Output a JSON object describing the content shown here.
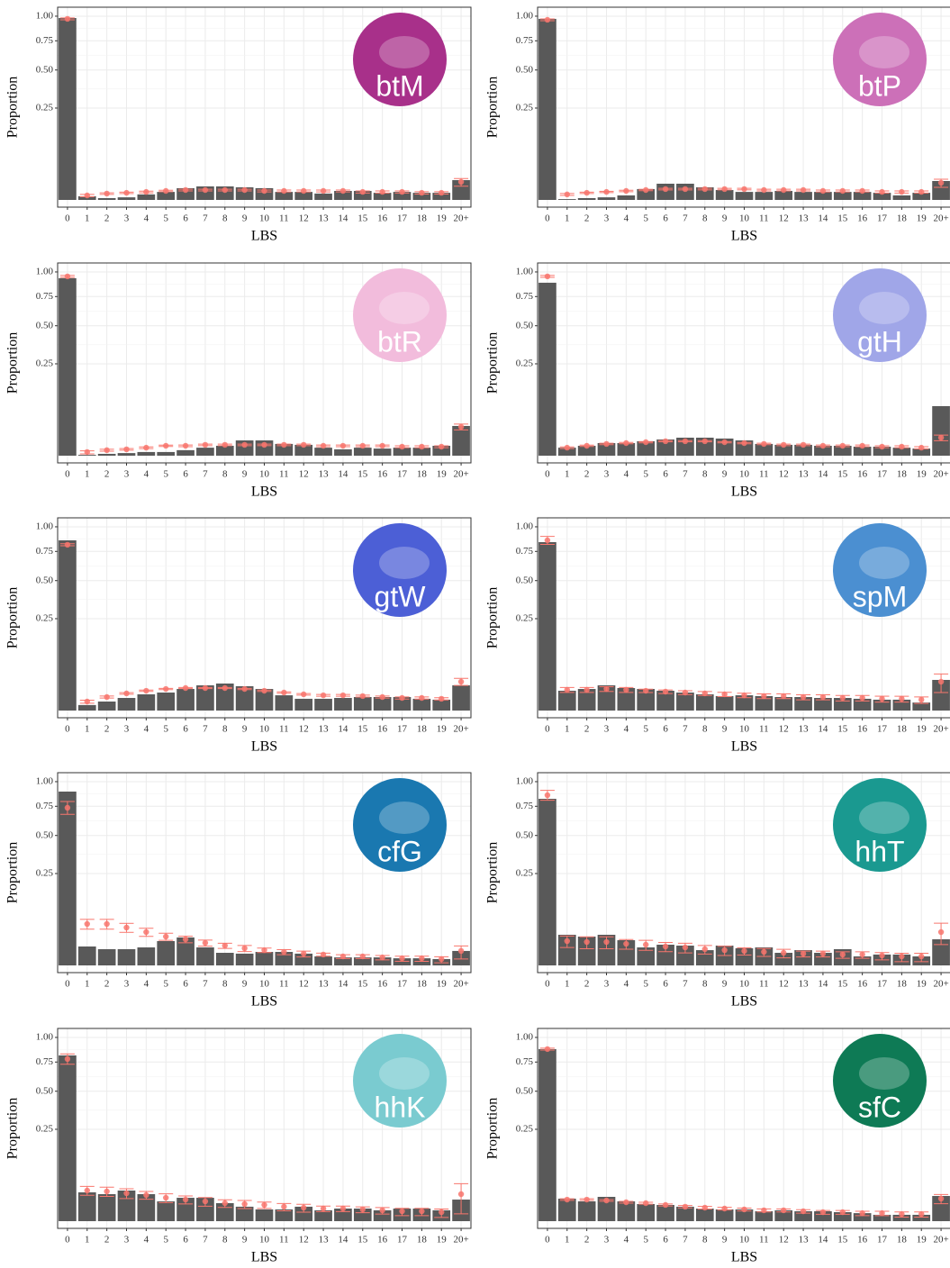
{
  "chart_data": [
    {
      "type": "bar",
      "label": "btM",
      "circle_color": "#a8308a",
      "xlabel": "LBS",
      "ylabel": "Proportion",
      "scale": "sqrt",
      "grid": true,
      "bar_color": "#595959",
      "point_color": "#f8766d",
      "categories": [
        "0",
        "1",
        "2",
        "3",
        "4",
        "5",
        "6",
        "7",
        "8",
        "9",
        "10",
        "11",
        "12",
        "13",
        "14",
        "15",
        "16",
        "17",
        "18",
        "19",
        "20+"
      ],
      "values": [
        0.98,
        0.0004,
        0.0001,
        0.0002,
        0.0009,
        0.0019,
        0.0041,
        0.0054,
        0.0054,
        0.0047,
        0.0041,
        0.0019,
        0.0019,
        0.0012,
        0.0024,
        0.0024,
        0.0015,
        0.0019,
        0.0015,
        0.0015,
        0.0116
      ],
      "point_values": [
        0.971,
        0.0006,
        0.0012,
        0.0015,
        0.0019,
        0.0024,
        0.0029,
        0.0029,
        0.0029,
        0.0029,
        0.0024,
        0.0024,
        0.0024,
        0.0024,
        0.0024,
        0.0019,
        0.0019,
        0.0019,
        0.0015,
        0.0015,
        0.0096
      ],
      "errors": [
        0.01,
        0.0003,
        0.0003,
        0.0003,
        0.0004,
        0.0004,
        0.0005,
        0.0005,
        0.0005,
        0.0005,
        0.0005,
        0.0005,
        0.0005,
        0.0005,
        0.0005,
        0.0005,
        0.0005,
        0.0005,
        0.0005,
        0.0005,
        0.004
      ],
      "ylim": [
        0,
        1.1
      ],
      "yticks": [
        0.25,
        {
          "value": 0.5,
          "label": "0.50"
        },
        0.75,
        {
          "value": 1,
          "label": "1.00"
        }
      ]
    },
    {
      "type": "bar",
      "label": "btP",
      "circle_color": "#cc70b8",
      "xlabel": "LBS",
      "ylabel": "Proportion",
      "scale": "sqrt",
      "grid": true,
      "bar_color": "#595959",
      "point_color": "#f8766d",
      "categories": [
        "0",
        "1",
        "2",
        "3",
        "4",
        "5",
        "6",
        "7",
        "8",
        "9",
        "10",
        "11",
        "12",
        "13",
        "14",
        "15",
        "16",
        "17",
        "18",
        "19",
        "20+"
      ],
      "values": [
        0.971,
        2e-05,
        0.0001,
        0.0002,
        0.0006,
        0.0035,
        0.0078,
        0.0078,
        0.0047,
        0.0029,
        0.0019,
        0.0019,
        0.0024,
        0.0019,
        0.0019,
        0.0019,
        0.0019,
        0.0015,
        0.0006,
        0.0015,
        0.0106
      ],
      "point_values": [
        0.961,
        0.0009,
        0.0015,
        0.0019,
        0.0024,
        0.0029,
        0.0035,
        0.0035,
        0.0035,
        0.0035,
        0.0035,
        0.0029,
        0.0029,
        0.0029,
        0.0024,
        0.0024,
        0.0024,
        0.0019,
        0.0019,
        0.0019,
        0.0087
      ],
      "errors": [
        0.01,
        0.0003,
        0.0003,
        0.0003,
        0.0004,
        0.0004,
        0.0005,
        0.0005,
        0.0005,
        0.0005,
        0.0005,
        0.0005,
        0.0005,
        0.0005,
        0.0005,
        0.0005,
        0.0005,
        0.0005,
        0.0005,
        0.0005,
        0.004
      ],
      "ylim": [
        0,
        1.1
      ],
      "yticks": [
        0.25,
        {
          "value": 0.5,
          "label": "0.50"
        },
        0.75,
        {
          "value": 1,
          "label": "1.00"
        }
      ]
    },
    {
      "type": "bar",
      "label": "btR",
      "circle_color": "#f2bcdc",
      "xlabel": "LBS",
      "ylabel": "Proportion",
      "scale": "sqrt",
      "grid": true,
      "bar_color": "#595959",
      "point_color": "#f8766d",
      "categories": [
        "0",
        "1",
        "2",
        "3",
        "4",
        "5",
        "6",
        "7",
        "8",
        "9",
        "10",
        "11",
        "12",
        "13",
        "14",
        "15",
        "16",
        "17",
        "18",
        "19",
        "20+"
      ],
      "values": [
        0.933,
        2e-05,
        0.0001,
        0.0002,
        0.0004,
        0.0004,
        0.0009,
        0.0019,
        0.0029,
        0.0069,
        0.0069,
        0.0041,
        0.0035,
        0.0019,
        0.0012,
        0.0019,
        0.0015,
        0.0019,
        0.0019,
        0.0029,
        0.0262
      ],
      "point_values": [
        0.952,
        0.0004,
        0.0009,
        0.0012,
        0.0019,
        0.0029,
        0.0029,
        0.0035,
        0.0035,
        0.0035,
        0.0035,
        0.0035,
        0.0035,
        0.0029,
        0.0029,
        0.0029,
        0.0029,
        0.0024,
        0.0024,
        0.0024,
        0.0246
      ],
      "errors": [
        0.01,
        0.0003,
        0.0003,
        0.0003,
        0.0004,
        0.0004,
        0.0005,
        0.0005,
        0.0005,
        0.0005,
        0.0005,
        0.0005,
        0.0005,
        0.0005,
        0.0005,
        0.0005,
        0.0005,
        0.0005,
        0.0005,
        0.0005,
        0.005
      ],
      "ylim": [
        0,
        1.1
      ],
      "yticks": [
        0.25,
        {
          "value": 0.5,
          "label": "0.50"
        },
        0.75,
        {
          "value": 1,
          "label": "1.00"
        }
      ]
    },
    {
      "type": "bar",
      "label": "gtH",
      "circle_color": "#a0a6e8",
      "xlabel": "LBS",
      "ylabel": "Proportion",
      "scale": "sqrt",
      "grid": true,
      "bar_color": "#595959",
      "point_color": "#f8766d",
      "categories": [
        "0",
        "1",
        "2",
        "3",
        "4",
        "5",
        "6",
        "7",
        "8",
        "9",
        "10",
        "11",
        "12",
        "13",
        "14",
        "15",
        "16",
        "17",
        "18",
        "19",
        "20+"
      ],
      "values": [
        0.886,
        0.0019,
        0.0029,
        0.0047,
        0.0047,
        0.0062,
        0.0078,
        0.0096,
        0.0096,
        0.0087,
        0.0069,
        0.0041,
        0.0035,
        0.0035,
        0.0029,
        0.0029,
        0.0024,
        0.0024,
        0.0019,
        0.0015,
        0.0727
      ],
      "point_values": [
        0.952,
        0.0019,
        0.0029,
        0.0041,
        0.0047,
        0.0054,
        0.0062,
        0.0062,
        0.0062,
        0.0054,
        0.0047,
        0.0041,
        0.0035,
        0.0035,
        0.0029,
        0.0029,
        0.0029,
        0.0024,
        0.0024,
        0.0019,
        0.0096
      ],
      "errors": [
        0.01,
        0.0004,
        0.0004,
        0.0005,
        0.0005,
        0.0005,
        0.0005,
        0.0005,
        0.0005,
        0.0005,
        0.0005,
        0.0005,
        0.0005,
        0.0005,
        0.0005,
        0.0005,
        0.0005,
        0.0005,
        0.0005,
        0.0005,
        0.003
      ],
      "ylim": [
        0,
        1.1
      ],
      "yticks": [
        0.25,
        {
          "value": 0.5,
          "label": "0.50"
        },
        0.75,
        {
          "value": 1,
          "label": "1.00"
        }
      ]
    },
    {
      "type": "bar",
      "label": "gtW",
      "circle_color": "#4c5fd6",
      "xlabel": "LBS",
      "ylabel": "Proportion",
      "scale": "sqrt",
      "grid": true,
      "bar_color": "#595959",
      "point_color": "#f8766d",
      "categories": [
        "0",
        "1",
        "2",
        "3",
        "4",
        "5",
        "6",
        "7",
        "8",
        "9",
        "10",
        "11",
        "12",
        "13",
        "14",
        "15",
        "16",
        "17",
        "18",
        "19",
        "20+"
      ],
      "values": [
        0.858,
        0.0009,
        0.0024,
        0.0047,
        0.0078,
        0.0096,
        0.0138,
        0.0188,
        0.0216,
        0.0175,
        0.0138,
        0.0069,
        0.0041,
        0.0041,
        0.0047,
        0.0054,
        0.0054,
        0.0054,
        0.0041,
        0.0035,
        0.0188
      ],
      "point_values": [
        0.814,
        0.0024,
        0.0054,
        0.0087,
        0.0116,
        0.0138,
        0.015,
        0.015,
        0.015,
        0.0138,
        0.0116,
        0.0096,
        0.0078,
        0.0069,
        0.0069,
        0.0062,
        0.0054,
        0.0047,
        0.0047,
        0.0041,
        0.0246
      ],
      "errors": [
        0.01,
        0.0008,
        0.0008,
        0.0008,
        0.0008,
        0.0008,
        0.0008,
        0.0008,
        0.0008,
        0.0008,
        0.0008,
        0.0008,
        0.0008,
        0.0008,
        0.0008,
        0.0008,
        0.0008,
        0.0008,
        0.0008,
        0.0008,
        0.006
      ],
      "ylim": [
        0,
        1.1
      ],
      "yticks": [
        0.25,
        {
          "value": 0.5,
          "label": "0.50"
        },
        0.75,
        {
          "value": 1,
          "label": "1.00"
        }
      ]
    },
    {
      "type": "bar",
      "label": "spM",
      "circle_color": "#4b8fd1",
      "xlabel": "LBS",
      "ylabel": "Proportion",
      "scale": "sqrt",
      "grid": true,
      "bar_color": "#595959",
      "point_color": "#f8766d",
      "categories": [
        "0",
        "1",
        "2",
        "3",
        "4",
        "5",
        "6",
        "7",
        "8",
        "9",
        "10",
        "11",
        "12",
        "13",
        "14",
        "15",
        "16",
        "17",
        "18",
        "19",
        "20+"
      ],
      "values": [
        0.84,
        0.0116,
        0.0138,
        0.0188,
        0.015,
        0.0138,
        0.0116,
        0.0096,
        0.0078,
        0.0062,
        0.0069,
        0.0062,
        0.0054,
        0.0054,
        0.0047,
        0.0047,
        0.0041,
        0.0035,
        0.0035,
        0.0019,
        0.0278
      ],
      "point_values": [
        0.858,
        0.0127,
        0.0127,
        0.0138,
        0.0127,
        0.0116,
        0.0106,
        0.0096,
        0.0087,
        0.0078,
        0.0069,
        0.0062,
        0.0062,
        0.0054,
        0.0054,
        0.0047,
        0.0047,
        0.0041,
        0.0041,
        0.0035,
        0.0246
      ],
      "errors": [
        0.04,
        0.003,
        0.003,
        0.003,
        0.003,
        0.002,
        0.002,
        0.002,
        0.002,
        0.002,
        0.002,
        0.002,
        0.002,
        0.002,
        0.002,
        0.002,
        0.002,
        0.002,
        0.002,
        0.002,
        0.015
      ],
      "ylim": [
        0,
        1.1
      ],
      "yticks": [
        0.25,
        {
          "value": 0.5,
          "label": "0.50"
        },
        0.75,
        {
          "value": 1,
          "label": "1.00"
        }
      ]
    },
    {
      "type": "bar",
      "label": "cfG",
      "circle_color": "#1a78b0",
      "xlabel": "LBS",
      "ylabel": "Proportion",
      "scale": "sqrt",
      "grid": true,
      "bar_color": "#595959",
      "point_color": "#f8766d",
      "categories": [
        "0",
        "1",
        "2",
        "3",
        "4",
        "5",
        "6",
        "7",
        "8",
        "9",
        "10",
        "11",
        "12",
        "13",
        "14",
        "15",
        "16",
        "17",
        "18",
        "19",
        "20+"
      ],
      "values": [
        0.895,
        0.0106,
        0.0078,
        0.0078,
        0.0096,
        0.0175,
        0.0231,
        0.0096,
        0.0047,
        0.0041,
        0.0054,
        0.0054,
        0.0041,
        0.0024,
        0.0019,
        0.0019,
        0.0019,
        0.0015,
        0.0015,
        0.0012,
        0.0062
      ],
      "point_values": [
        0.736,
        0.0508,
        0.0508,
        0.0424,
        0.0329,
        0.0246,
        0.0202,
        0.015,
        0.0116,
        0.0087,
        0.0069,
        0.0054,
        0.0041,
        0.0035,
        0.0024,
        0.0024,
        0.0019,
        0.0015,
        0.0015,
        0.0012,
        0.0062
      ],
      "errors": [
        0.06,
        0.012,
        0.012,
        0.01,
        0.008,
        0.006,
        0.005,
        0.004,
        0.003,
        0.003,
        0.002,
        0.002,
        0.002,
        0.001,
        0.001,
        0.001,
        0.001,
        0.001,
        0.001,
        0.001,
        0.005
      ],
      "ylim": [
        0,
        1.1
      ],
      "yticks": [
        0.25,
        {
          "value": 0.5,
          "label": "0.50"
        },
        0.75,
        {
          "value": 1,
          "label": "1.00"
        }
      ]
    },
    {
      "type": "bar",
      "label": "hhT",
      "circle_color": "#1a9990",
      "xlabel": "LBS",
      "ylabel": "Proportion",
      "scale": "sqrt",
      "grid": true,
      "bar_color": "#595959",
      "point_color": "#f8766d",
      "categories": [
        "0",
        "1",
        "2",
        "3",
        "4",
        "5",
        "6",
        "7",
        "8",
        "9",
        "10",
        "11",
        "12",
        "13",
        "14",
        "15",
        "16",
        "17",
        "18",
        "19",
        "20+"
      ],
      "values": [
        0.822,
        0.0278,
        0.0246,
        0.0278,
        0.0188,
        0.0096,
        0.0127,
        0.0116,
        0.0069,
        0.0116,
        0.0087,
        0.0096,
        0.0047,
        0.0069,
        0.0047,
        0.0078,
        0.0024,
        0.0035,
        0.0035,
        0.0024,
        0.0202
      ],
      "point_values": [
        0.858,
        0.0175,
        0.0162,
        0.0162,
        0.0138,
        0.0127,
        0.0106,
        0.0096,
        0.0078,
        0.0069,
        0.0062,
        0.0054,
        0.0047,
        0.0041,
        0.0041,
        0.0035,
        0.0035,
        0.0029,
        0.0024,
        0.0024,
        0.0329
      ],
      "errors": [
        0.05,
        0.008,
        0.008,
        0.008,
        0.006,
        0.006,
        0.005,
        0.005,
        0.004,
        0.004,
        0.003,
        0.003,
        0.003,
        0.002,
        0.002,
        0.002,
        0.002,
        0.002,
        0.002,
        0.002,
        0.02
      ],
      "ylim": [
        0,
        1.1
      ],
      "yticks": [
        0.25,
        {
          "value": 0.5,
          "label": "0.50"
        },
        0.75,
        {
          "value": 1,
          "label": "1.00"
        }
      ]
    },
    {
      "type": "bar",
      "label": "hhK",
      "circle_color": "#7acbd0",
      "xlabel": "LBS",
      "ylabel": "Proportion",
      "scale": "sqrt",
      "grid": true,
      "bar_color": "#595959",
      "point_color": "#f8766d",
      "categories": [
        "0",
        "1",
        "2",
        "3",
        "4",
        "5",
        "6",
        "7",
        "8",
        "9",
        "10",
        "11",
        "12",
        "13",
        "14",
        "15",
        "16",
        "17",
        "18",
        "19",
        "20+"
      ],
      "values": [
        0.814,
        0.0246,
        0.0216,
        0.0278,
        0.0216,
        0.0116,
        0.0162,
        0.0162,
        0.0096,
        0.0062,
        0.0041,
        0.0041,
        0.0062,
        0.0035,
        0.0047,
        0.0047,
        0.0035,
        0.0047,
        0.0047,
        0.0035,
        0.0138
      ],
      "point_values": [
        0.779,
        0.0278,
        0.0262,
        0.0231,
        0.0202,
        0.0162,
        0.0138,
        0.0116,
        0.0096,
        0.0087,
        0.0078,
        0.0062,
        0.0054,
        0.0047,
        0.0047,
        0.0041,
        0.0035,
        0.0029,
        0.0029,
        0.0024,
        0.0216
      ],
      "errors": [
        0.05,
        0.008,
        0.008,
        0.008,
        0.006,
        0.006,
        0.005,
        0.005,
        0.004,
        0.004,
        0.003,
        0.003,
        0.003,
        0.002,
        0.002,
        0.002,
        0.002,
        0.002,
        0.002,
        0.002,
        0.02
      ],
      "ylim": [
        0,
        1.1
      ],
      "yticks": [
        0.25,
        {
          "value": 0.5,
          "label": "0.50"
        },
        0.75,
        {
          "value": 1,
          "label": "1.00"
        }
      ]
    },
    {
      "type": "bar",
      "label": "sfC",
      "circle_color": "#0e7a55",
      "xlabel": "LBS",
      "ylabel": "Proportion",
      "scale": "sqrt",
      "grid": true,
      "bar_color": "#595959",
      "point_color": "#f8766d",
      "categories": [
        "0",
        "1",
        "2",
        "3",
        "4",
        "5",
        "6",
        "7",
        "8",
        "9",
        "10",
        "11",
        "12",
        "13",
        "14",
        "15",
        "16",
        "17",
        "18",
        "19",
        "20+"
      ],
      "values": [
        0.877,
        0.015,
        0.0116,
        0.0175,
        0.0116,
        0.0087,
        0.0078,
        0.0062,
        0.0047,
        0.0041,
        0.0041,
        0.0029,
        0.0035,
        0.0029,
        0.0029,
        0.0024,
        0.0019,
        0.0012,
        0.0012,
        0.0012,
        0.0188
      ],
      "point_values": [
        0.877,
        0.0138,
        0.0138,
        0.0127,
        0.0106,
        0.0096,
        0.0078,
        0.0062,
        0.0054,
        0.0047,
        0.0041,
        0.0035,
        0.0035,
        0.0029,
        0.0024,
        0.0024,
        0.0019,
        0.0019,
        0.0015,
        0.0015,
        0.015
      ],
      "errors": [
        0.01,
        0.001,
        0.001,
        0.001,
        0.001,
        0.001,
        0.001,
        0.001,
        0.001,
        0.001,
        0.001,
        0.001,
        0.001,
        0.001,
        0.001,
        0.001,
        0.001,
        0.001,
        0.001,
        0.001,
        0.006
      ],
      "ylim": [
        0,
        1.1
      ],
      "yticks": [
        0.25,
        {
          "value": 0.5,
          "label": "0.50"
        },
        0.75,
        {
          "value": 1,
          "label": "1.00"
        }
      ]
    }
  ]
}
